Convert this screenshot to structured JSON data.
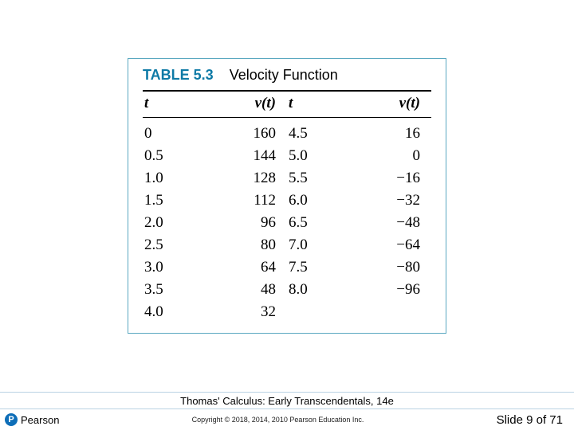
{
  "table": {
    "border_color": "#5aa8c0",
    "label": "TABLE 5.3",
    "label_color": "#0e7aa6",
    "title": "Velocity Function",
    "headers": {
      "t": "t",
      "v": "v(t)"
    },
    "left": [
      {
        "t": "0",
        "v": "160"
      },
      {
        "t": "0.5",
        "v": "144"
      },
      {
        "t": "1.0",
        "v": "128"
      },
      {
        "t": "1.5",
        "v": "112"
      },
      {
        "t": "2.0",
        "v": "96"
      },
      {
        "t": "2.5",
        "v": "80"
      },
      {
        "t": "3.0",
        "v": "64"
      },
      {
        "t": "3.5",
        "v": "48"
      },
      {
        "t": "4.0",
        "v": "32"
      }
    ],
    "right": [
      {
        "t": "4.5",
        "v": "16"
      },
      {
        "t": "5.0",
        "v": "0"
      },
      {
        "t": "5.5",
        "v": "−16"
      },
      {
        "t": "6.0",
        "v": "−32"
      },
      {
        "t": "6.5",
        "v": "−48"
      },
      {
        "t": "7.0",
        "v": "−64"
      },
      {
        "t": "7.5",
        "v": "−80"
      },
      {
        "t": "8.0",
        "v": "−96"
      },
      {
        "t": "",
        "v": ""
      }
    ]
  },
  "footer": {
    "book_title": "Thomas' Calculus: Early Transcendentals, 14e",
    "brand_letter": "P",
    "brand_name": "Pearson",
    "brand_badge_color": "#0e6eb8",
    "copyright": "Copyright © 2018, 2014, 2010 Pearson Education Inc.",
    "slide_label": "Slide 9 of 71"
  }
}
